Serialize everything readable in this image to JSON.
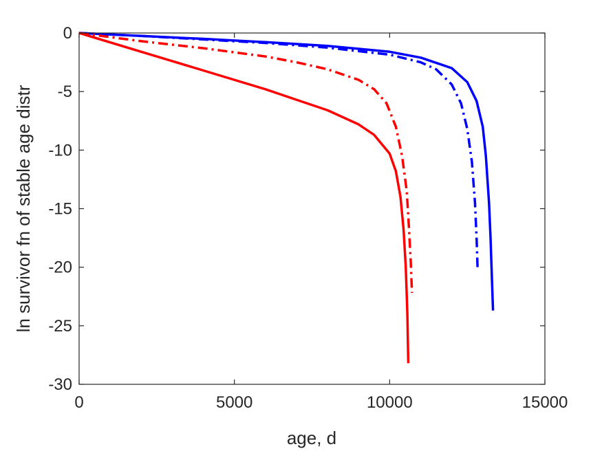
{
  "chart_data": {
    "type": "line",
    "title": "",
    "xlabel": "age, d",
    "ylabel": "ln survivor fn of stable age distr",
    "xlim": [
      0,
      15000
    ],
    "ylim": [
      -30,
      0
    ],
    "xticks": [
      0,
      5000,
      10000,
      15000
    ],
    "yticks": [
      0,
      -5,
      -10,
      -15,
      -20,
      -25,
      -30
    ],
    "xtick_labels": [
      "0",
      "5000",
      "10000",
      "15000"
    ],
    "ytick_labels": [
      "0",
      "-5",
      "-10",
      "-15",
      "-20",
      "-25",
      "-30"
    ],
    "grid": false,
    "legend": "none",
    "series": [
      {
        "color": "#0000ff",
        "style": "solid",
        "x": [
          0,
          2000,
          4000,
          6000,
          8000,
          10000,
          11000,
          12000,
          12500,
          12800,
          13000,
          13100,
          13200,
          13250,
          13300,
          13330
        ],
        "y": [
          0,
          -0.25,
          -0.5,
          -0.78,
          -1.1,
          -1.6,
          -2.1,
          -3.0,
          -4.2,
          -5.8,
          -8.0,
          -10.5,
          -14.5,
          -17.5,
          -21.5,
          -23.7
        ]
      },
      {
        "color": "#0000ff",
        "style": "dashdot",
        "x": [
          0,
          2000,
          4000,
          6000,
          8000,
          10000,
          11000,
          11500,
          12000,
          12300,
          12500,
          12650,
          12750,
          12800,
          12830
        ],
        "y": [
          0,
          -0.25,
          -0.55,
          -0.85,
          -1.25,
          -1.85,
          -2.5,
          -3.1,
          -4.4,
          -6.0,
          -8.2,
          -11.0,
          -14.5,
          -17.5,
          -20.0
        ]
      },
      {
        "color": "#ff0000",
        "style": "solid",
        "x": [
          0,
          2000,
          4000,
          6000,
          7000,
          8000,
          9000,
          9500,
          10000,
          10200,
          10350,
          10450,
          10520,
          10570,
          10600
        ],
        "y": [
          0,
          -1.6,
          -3.2,
          -4.8,
          -5.7,
          -6.6,
          -7.8,
          -8.7,
          -10.3,
          -11.8,
          -14.0,
          -16.8,
          -20.0,
          -24.0,
          -28.2
        ]
      },
      {
        "color": "#ff0000",
        "style": "dashdot",
        "x": [
          0,
          2000,
          4000,
          6000,
          7000,
          8000,
          9000,
          9500,
          9900,
          10200,
          10400,
          10550,
          10620,
          10680,
          10720
        ],
        "y": [
          0,
          -0.7,
          -1.3,
          -2.0,
          -2.5,
          -3.1,
          -4.0,
          -4.8,
          -6.0,
          -8.0,
          -10.5,
          -13.5,
          -16.5,
          -19.5,
          -22.2
        ]
      }
    ]
  }
}
